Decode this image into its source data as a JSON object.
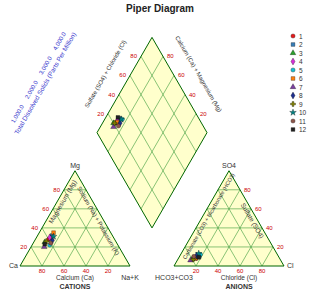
{
  "chart_data": {
    "type": "piper",
    "title": "Piper Diagram",
    "ticks": [
      20,
      40,
      60,
      80
    ],
    "grid": true,
    "cation_labels": {
      "corner_left": "Ca",
      "corner_right": "Na+K",
      "corner_top": "Mg",
      "bottom": "Calcium (Ca)",
      "left": "Magnesium (Mg)",
      "right": "Sodium (Na) + Potassium (K)",
      "group": "CATIONS"
    },
    "anion_labels": {
      "corner_left": "HCO3+CO3",
      "corner_right": "Cl",
      "corner_top": "SO4",
      "bottom": "Chloride (Cl)",
      "left": "Carbonate (CO3) + Bicarbonate (HCO3)",
      "right": "Sulfate (SO4)",
      "group": "ANIONS"
    },
    "diamond_labels": {
      "left": "Sulfate (SO4) + Chloride (Cl)",
      "right": "Calcium (Ca) + Magnesium (Mg)"
    },
    "tds_scale": {
      "title": "Total Dissolved Solids (Parts Per Million)",
      "labels": [
        "1,000.0",
        "2,000.0",
        "3,000.0",
        "4,000.0"
      ]
    },
    "series": [
      {
        "name": "1",
        "color": "#e41a1c",
        "marker": "circle",
        "ca": 60,
        "mg": 28,
        "na_k": 12,
        "hco3": 78,
        "so4": 8,
        "cl": 14
      },
      {
        "name": "2",
        "color": "#377eb8",
        "marker": "square",
        "ca": 55,
        "mg": 32,
        "na_k": 13,
        "hco3": 72,
        "so4": 10,
        "cl": 18
      },
      {
        "name": "3",
        "color": "#2ca02c",
        "marker": "triangle",
        "ca": 65,
        "mg": 25,
        "na_k": 10,
        "hco3": 80,
        "so4": 7,
        "cl": 13
      },
      {
        "name": "4",
        "color": "#d62fd6",
        "marker": "diamond",
        "ca": 58,
        "mg": 30,
        "na_k": 12,
        "hco3": 75,
        "so4": 9,
        "cl": 16
      },
      {
        "name": "5",
        "color": "#17becf",
        "marker": "circle",
        "ca": 62,
        "mg": 22,
        "na_k": 16,
        "hco3": 70,
        "so4": 12,
        "cl": 18
      },
      {
        "name": "6",
        "color": "#ff7f0e",
        "marker": "square",
        "ca": 52,
        "mg": 35,
        "na_k": 13,
        "hco3": 76,
        "so4": 8,
        "cl": 16
      },
      {
        "name": "7",
        "color": "#7b3fa0",
        "marker": "triangle",
        "ca": 68,
        "mg": 20,
        "na_k": 12,
        "hco3": 82,
        "so4": 6,
        "cl": 12
      },
      {
        "name": "8",
        "color": "#1f2f8f",
        "marker": "diamond",
        "ca": 57,
        "mg": 27,
        "na_k": 16,
        "hco3": 74,
        "so4": 11,
        "cl": 15
      },
      {
        "name": "9",
        "color": "#808000",
        "marker": "cross",
        "ca": 63,
        "mg": 26,
        "na_k": 11,
        "hco3": 79,
        "so4": 7,
        "cl": 14
      },
      {
        "name": "10",
        "color": "#008080",
        "marker": "star",
        "ca": 54,
        "mg": 31,
        "na_k": 15,
        "hco3": 71,
        "so4": 13,
        "cl": 16
      },
      {
        "name": "11",
        "color": "#8c564b",
        "marker": "circle",
        "ca": 60,
        "mg": 24,
        "na_k": 16,
        "hco3": 77,
        "so4": 10,
        "cl": 13
      },
      {
        "name": "12",
        "color": "#222222",
        "marker": "square",
        "ca": 66,
        "mg": 23,
        "na_k": 11,
        "hco3": 73,
        "so4": 9,
        "cl": 18
      }
    ]
  }
}
